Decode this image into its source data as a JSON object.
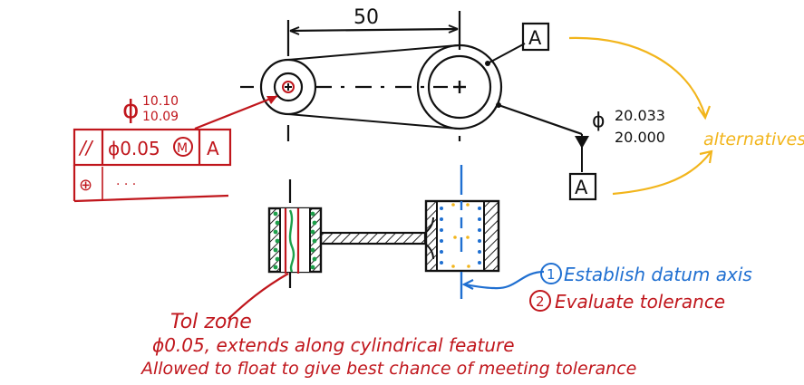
{
  "colors": {
    "ink": "#111111",
    "red": "#c0161c",
    "blue": "#1f6fd1",
    "green": "#1ea04a",
    "orange": "#f2b51c",
    "hatch": "#222222"
  },
  "top_view": {
    "dimension_50": "50",
    "datum_label_top": "A",
    "diameter_symbol": "ϕ",
    "large_hole_upper": "20.033",
    "large_hole_lower": "20.000",
    "datum_label_bottom": "A",
    "alternatives_note": "alternatives"
  },
  "small_hole_callout": {
    "diameter_symbol": "ϕ",
    "upper": "10.10",
    "lower": "10.09"
  },
  "feature_control_frame": {
    "row1": {
      "symbol": "//",
      "tolerance": "ϕ0.05",
      "modifier": "M",
      "datum": "A"
    },
    "row2": {
      "symbol": "⊕",
      "ellipsis": "· · ·"
    }
  },
  "steps": {
    "step1_number": "1",
    "step1_text": "Establish datum axis",
    "step2_number": "2",
    "step2_text": "Evaluate tolerance"
  },
  "tol_zone_note": {
    "title": "Tol zone",
    "line1": "ϕ0.05, extends along cylindrical feature",
    "line2": "Allowed to float to give best chance of meeting tolerance"
  }
}
